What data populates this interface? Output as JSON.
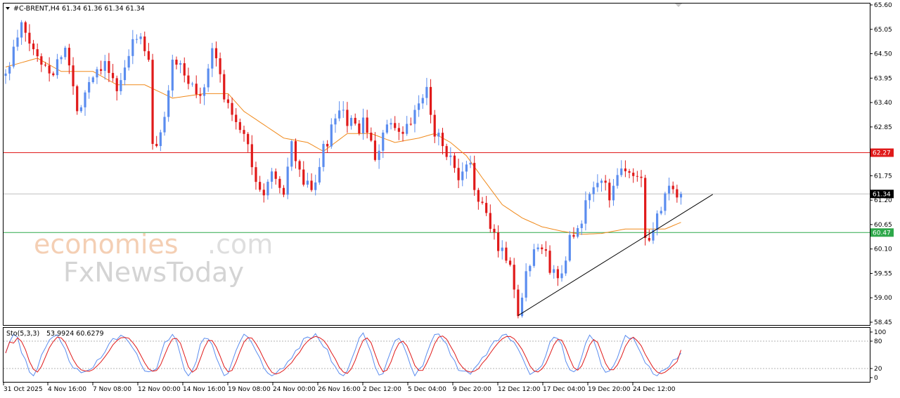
{
  "header": {
    "symbol_label": "#C-BRENT,H4",
    "ohlc": "61.34 61.36 61.34 61.34",
    "stoch_label": "Sto(5,3,3)",
    "stoch_values": "53.9924 60.6279"
  },
  "watermark": {
    "part1": "economies",
    "part2": ".com",
    "part3": "FxNewsToday"
  },
  "colors": {
    "bull": "#5b8def",
    "bear": "#e01a1a",
    "ma": "#f08a1c",
    "resistance": "#e01a1a",
    "support": "#2ea84a",
    "current": "#bfbfbf",
    "stoch_main": "#5b8def",
    "stoch_signal": "#e01a1a"
  },
  "price_axis": {
    "labels": [
      "65.60",
      "65.05",
      "64.50",
      "63.95",
      "63.40",
      "62.85",
      "62.30",
      "61.75",
      "61.20",
      "60.65",
      "60.10",
      "59.55",
      "59.00",
      "58.45"
    ],
    "current_price": "61.34",
    "resistance_label": "62.27",
    "support_label": "60.47"
  },
  "stoch_axis": {
    "labels": [
      "100",
      "80",
      "20",
      "0"
    ]
  },
  "time_axis": {
    "labels": [
      "31 Oct 2025",
      "4 Nov 16:00",
      "7 Nov 08:00",
      "12 Nov 00:00",
      "14 Nov 16:00",
      "19 Nov 08:00",
      "24 Nov 00:00",
      "26 Nov 16:00",
      "2 Dec 12:00",
      "5 Dec 04:00",
      "9 Dec 20:00",
      "12 Dec 12:00",
      "17 Dec 04:00",
      "19 Dec 20:00",
      "24 Dec 12:00"
    ]
  },
  "chart_data": {
    "type": "candlestick",
    "symbol": "#C-BRENT",
    "timeframe": "H4",
    "ylim": [
      58.45,
      65.6
    ],
    "horizontal_lines": [
      {
        "value": 62.27,
        "color": "#e01a1a"
      },
      {
        "value": 61.34,
        "color": "#bfbfbf"
      },
      {
        "value": 60.47,
        "color": "#2ea84a"
      }
    ],
    "trendline": {
      "from": [
        129,
        58.6
      ],
      "to": [
        178,
        61.33
      ]
    },
    "anchors": [
      [
        0,
        64.0
      ],
      [
        4,
        65.1
      ],
      [
        8,
        64.4
      ],
      [
        12,
        64.1
      ],
      [
        15,
        64.7
      ],
      [
        18,
        63.2
      ],
      [
        21,
        63.9
      ],
      [
        25,
        64.4
      ],
      [
        28,
        63.6
      ],
      [
        31,
        64.4
      ],
      [
        33,
        65.0
      ],
      [
        36,
        64.3
      ],
      [
        37,
        62.4
      ],
      [
        39,
        62.6
      ],
      [
        42,
        64.4
      ],
      [
        45,
        64.0
      ],
      [
        49,
        63.5
      ],
      [
        52,
        64.7
      ],
      [
        55,
        63.6
      ],
      [
        57,
        63.2
      ],
      [
        60,
        62.8
      ],
      [
        62,
        62.0
      ],
      [
        64,
        61.3
      ],
      [
        68,
        61.8
      ],
      [
        70,
        61.3
      ],
      [
        72,
        62.4
      ],
      [
        75,
        61.6
      ],
      [
        77,
        61.4
      ],
      [
        80,
        62.3
      ],
      [
        83,
        63.0
      ],
      [
        85,
        63.1
      ],
      [
        88,
        62.8
      ],
      [
        90,
        62.9
      ],
      [
        93,
        62.2
      ],
      [
        96,
        62.9
      ],
      [
        99,
        62.6
      ],
      [
        102,
        62.9
      ],
      [
        104,
        63.4
      ],
      [
        106,
        63.6
      ],
      [
        108,
        62.8
      ],
      [
        111,
        62.3
      ],
      [
        114,
        61.6
      ],
      [
        117,
        62.0
      ],
      [
        119,
        61.2
      ],
      [
        121,
        60.8
      ],
      [
        124,
        60.2
      ],
      [
        127,
        59.8
      ],
      [
        129,
        58.6
      ],
      [
        131,
        59.6
      ],
      [
        134,
        60.3
      ],
      [
        137,
        59.7
      ],
      [
        139,
        59.4
      ],
      [
        142,
        60.3
      ],
      [
        144,
        60.4
      ],
      [
        147,
        61.4
      ],
      [
        150,
        61.6
      ],
      [
        152,
        61.3
      ],
      [
        154,
        61.9
      ],
      [
        157,
        61.8
      ],
      [
        160,
        61.6
      ],
      [
        161,
        60.5
      ],
      [
        163,
        60.4
      ],
      [
        165,
        61.1
      ],
      [
        166,
        61.5
      ],
      [
        168,
        61.3
      ]
    ],
    "ma_anchors": [
      [
        0,
        64.2
      ],
      [
        8,
        64.4
      ],
      [
        14,
        64.1
      ],
      [
        22,
        64.1
      ],
      [
        28,
        63.8
      ],
      [
        35,
        63.8
      ],
      [
        42,
        63.5
      ],
      [
        50,
        63.6
      ],
      [
        56,
        63.6
      ],
      [
        60,
        63.2
      ],
      [
        65,
        62.9
      ],
      [
        70,
        62.6
      ],
      [
        76,
        62.5
      ],
      [
        80,
        62.3
      ],
      [
        86,
        62.7
      ],
      [
        92,
        62.7
      ],
      [
        98,
        62.5
      ],
      [
        104,
        62.6
      ],
      [
        108,
        62.7
      ],
      [
        112,
        62.5
      ],
      [
        116,
        62.2
      ],
      [
        120,
        61.7
      ],
      [
        125,
        61.1
      ],
      [
        130,
        60.8
      ],
      [
        135,
        60.6
      ],
      [
        140,
        60.5
      ],
      [
        145,
        60.43
      ],
      [
        150,
        60.45
      ],
      [
        156,
        60.55
      ],
      [
        160,
        60.55
      ],
      [
        166,
        60.55
      ],
      [
        170,
        60.7
      ]
    ],
    "stochastic": {
      "k": 53.9924,
      "d": 60.6279,
      "levels": [
        80,
        20
      ],
      "ylim": [
        0,
        100
      ]
    }
  }
}
